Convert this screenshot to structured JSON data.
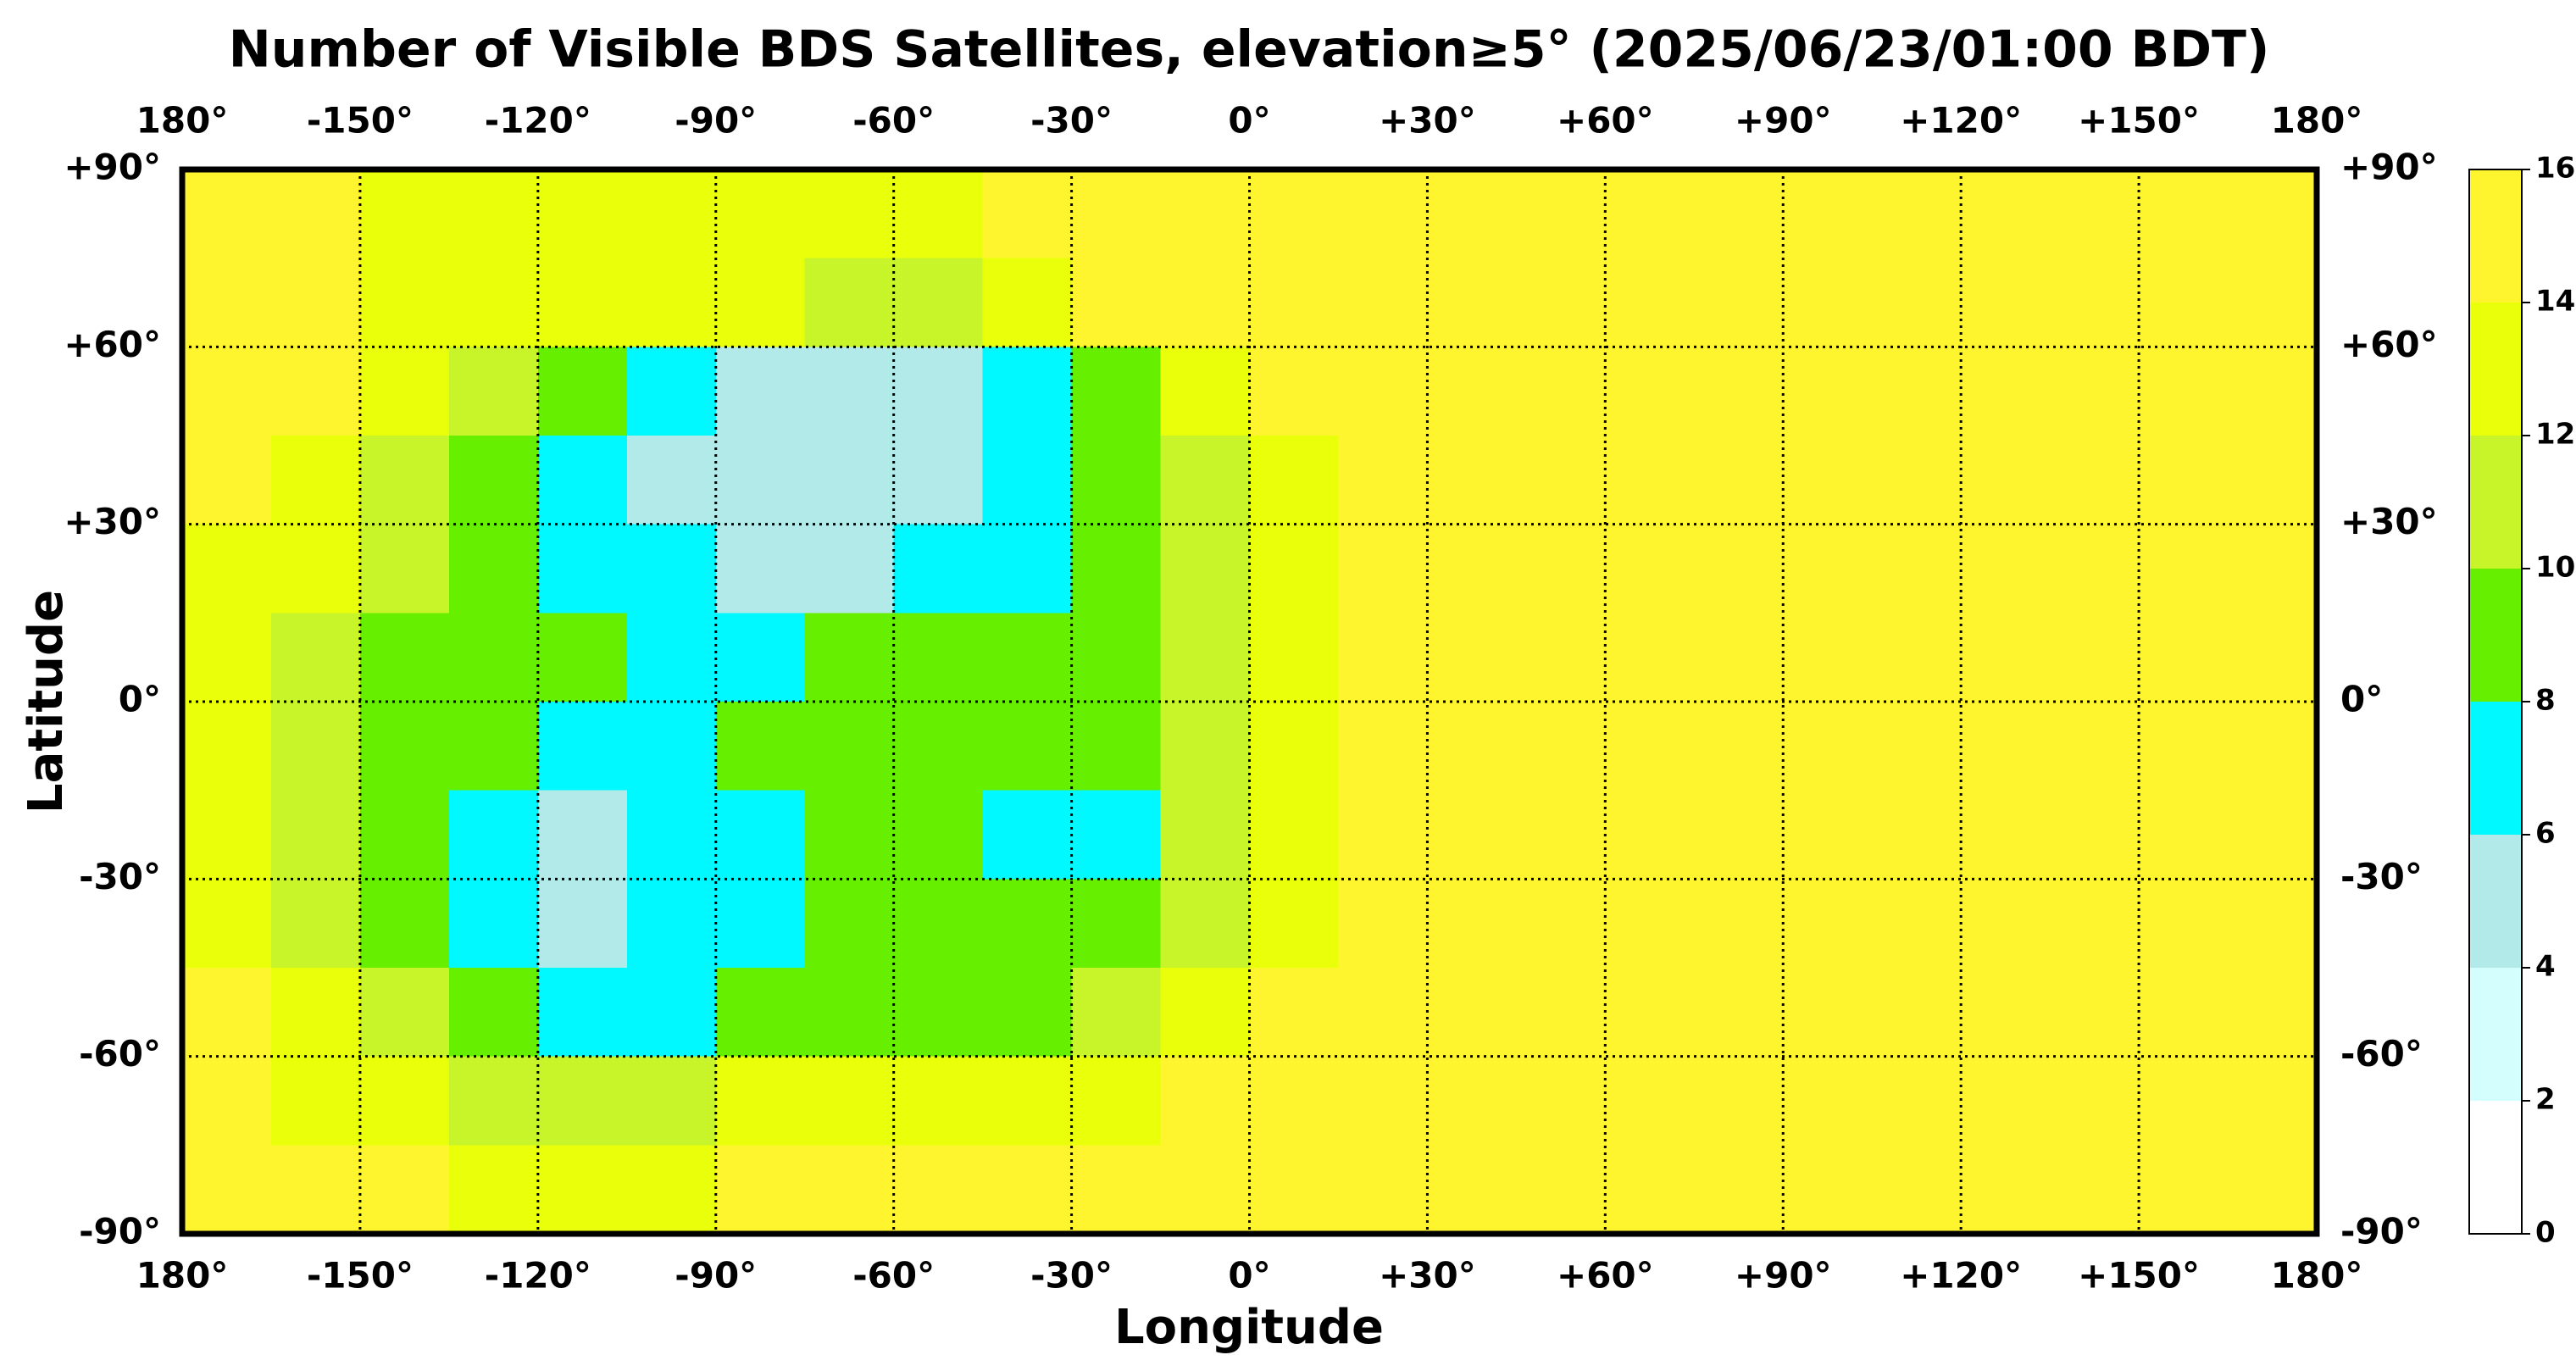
{
  "chart_data": {
    "type": "heatmap",
    "title": "Number of Visible BDS Satellites, elevation≥5° (2025/06/23/01:00 BDT)",
    "xlabel": "Longitude",
    "ylabel": "Latitude",
    "xlim": [
      -180,
      180
    ],
    "ylim": [
      -90,
      90
    ],
    "xticks": [
      {
        "value": -180,
        "label": "180°"
      },
      {
        "value": -150,
        "label": "-150°"
      },
      {
        "value": -120,
        "label": "-120°"
      },
      {
        "value": -90,
        "label": "-90°"
      },
      {
        "value": -60,
        "label": "-60°"
      },
      {
        "value": -30,
        "label": "-30°"
      },
      {
        "value": 0,
        "label": "0°"
      },
      {
        "value": 30,
        "label": "+30°"
      },
      {
        "value": 60,
        "label": "+60°"
      },
      {
        "value": 90,
        "label": "+90°"
      },
      {
        "value": 120,
        "label": "+120°"
      },
      {
        "value": 150,
        "label": "+150°"
      },
      {
        "value": 180,
        "label": "180°"
      }
    ],
    "yticks": [
      {
        "value": 90,
        "label": "+90°"
      },
      {
        "value": 60,
        "label": "+60°"
      },
      {
        "value": 30,
        "label": "+30°"
      },
      {
        "value": 0,
        "label": "0°"
      },
      {
        "value": -30,
        "label": "-30°"
      },
      {
        "value": -60,
        "label": "-60°"
      },
      {
        "value": -90,
        "label": "-90°"
      }
    ],
    "grid": true,
    "x": [
      -172.5,
      -157.5,
      -142.5,
      -127.5,
      -112.5,
      -97.5,
      -82.5,
      -67.5,
      -52.5,
      -37.5,
      -22.5,
      -7.5,
      7.5,
      22.5,
      37.5,
      52.5,
      67.5,
      82.5,
      97.5,
      112.5,
      127.5,
      142.5,
      157.5,
      172.5
    ],
    "y": [
      82.5,
      67.5,
      52.5,
      37.5,
      22.5,
      7.5,
      -7.5,
      -22.5,
      -37.5,
      -52.5,
      -67.5,
      -82.5
    ],
    "z": [
      [
        15,
        15,
        13,
        13,
        13,
        13,
        13,
        13,
        13,
        15,
        15,
        15,
        15,
        15,
        15,
        15,
        15,
        15,
        15,
        15,
        15,
        15,
        15,
        15
      ],
      [
        15,
        15,
        13,
        13,
        13,
        13,
        13,
        11,
        11,
        13,
        15,
        15,
        15,
        15,
        15,
        15,
        15,
        15,
        15,
        15,
        15,
        15,
        15,
        15
      ],
      [
        15,
        15,
        13,
        11,
        9,
        7,
        5,
        5,
        5,
        7,
        9,
        13,
        15,
        15,
        15,
        15,
        15,
        15,
        15,
        15,
        15,
        15,
        15,
        15
      ],
      [
        15,
        13,
        11,
        9,
        7,
        5,
        5,
        5,
        5,
        7,
        9,
        11,
        13,
        15,
        15,
        15,
        15,
        15,
        15,
        15,
        15,
        15,
        15,
        15
      ],
      [
        13,
        13,
        11,
        9,
        7,
        7,
        5,
        5,
        7,
        7,
        9,
        11,
        13,
        15,
        15,
        15,
        15,
        15,
        15,
        15,
        15,
        15,
        15,
        15
      ],
      [
        13,
        11,
        9,
        9,
        9,
        7,
        7,
        9,
        9,
        9,
        9,
        11,
        13,
        15,
        15,
        15,
        15,
        15,
        15,
        15,
        15,
        15,
        15,
        15
      ],
      [
        13,
        11,
        9,
        9,
        7,
        7,
        9,
        9,
        9,
        9,
        9,
        11,
        13,
        15,
        15,
        15,
        15,
        15,
        15,
        15,
        15,
        15,
        15,
        15
      ],
      [
        13,
        11,
        9,
        7,
        5,
        7,
        7,
        9,
        9,
        7,
        7,
        11,
        13,
        15,
        15,
        15,
        15,
        15,
        15,
        15,
        15,
        15,
        15,
        15
      ],
      [
        13,
        11,
        9,
        7,
        5,
        7,
        7,
        9,
        9,
        9,
        9,
        11,
        13,
        15,
        15,
        15,
        15,
        15,
        15,
        15,
        15,
        15,
        15,
        15
      ],
      [
        15,
        13,
        11,
        9,
        7,
        7,
        9,
        9,
        9,
        9,
        11,
        13,
        15,
        15,
        15,
        15,
        15,
        15,
        15,
        15,
        15,
        15,
        15,
        15
      ],
      [
        15,
        13,
        13,
        11,
        11,
        11,
        13,
        13,
        13,
        13,
        13,
        15,
        15,
        15,
        15,
        15,
        15,
        15,
        15,
        15,
        15,
        15,
        15,
        15
      ],
      [
        15,
        15,
        15,
        13,
        13,
        13,
        15,
        15,
        15,
        15,
        15,
        15,
        15,
        15,
        15,
        15,
        15,
        15,
        15,
        15,
        15,
        15,
        15,
        15
      ]
    ],
    "colorbar": {
      "levels": [
        0,
        2,
        4,
        6,
        8,
        10,
        12,
        14,
        16
      ],
      "colors": [
        "#ffffff",
        "#d4fdfd",
        "#b2e9e9",
        "#00f9ff",
        "#66f000",
        "#c8f52a",
        "#eaff0a",
        "#fff52e"
      ]
    }
  }
}
